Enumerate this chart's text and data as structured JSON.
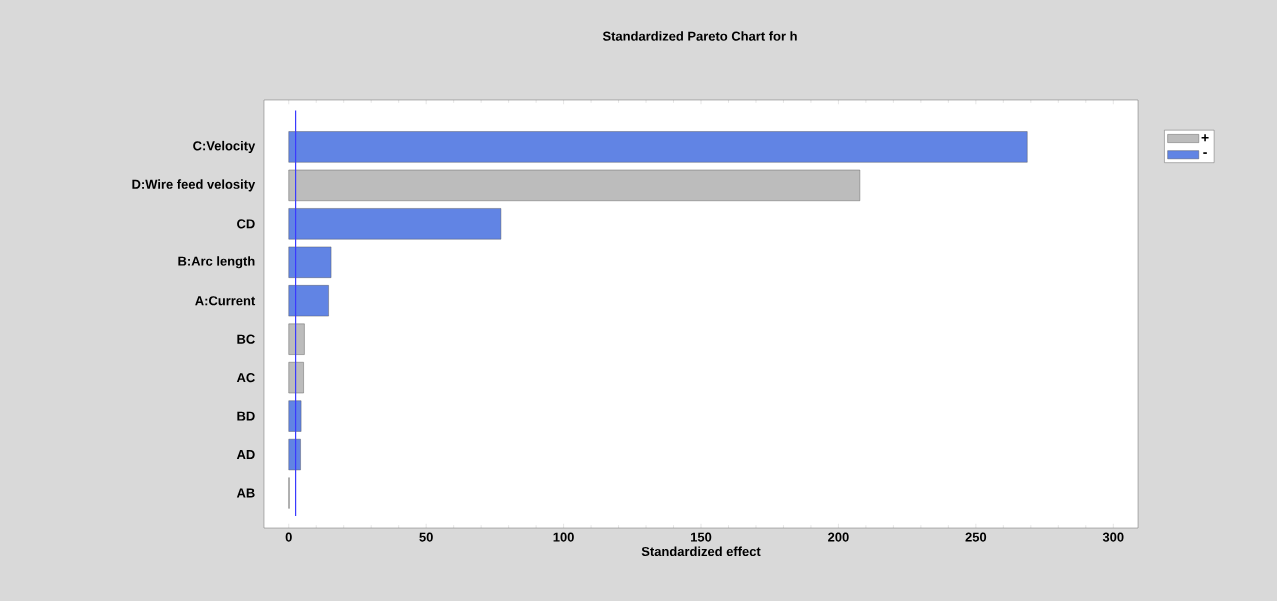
{
  "chart_data": {
    "type": "bar",
    "orientation": "horizontal",
    "title": "Standardized Pareto Chart for h",
    "xlabel": "Standardized effect",
    "categories": [
      "C:Velocity",
      "D:Wire feed velosity",
      "CD",
      "B:Arc length",
      "A:Current",
      "BC",
      "AC",
      "BD",
      "AD",
      "AB"
    ],
    "series": [
      {
        "name": "+",
        "color": "#bcbcbc",
        "values": [
          null,
          207.8,
          null,
          null,
          null,
          5.7,
          5.4,
          null,
          null,
          0.2
        ]
      },
      {
        "name": "-",
        "color": "#6184e4",
        "values": [
          268.7,
          null,
          77.2,
          15.4,
          14.5,
          null,
          null,
          4.5,
          4.3,
          null
        ]
      }
    ],
    "xlim": [
      -9,
      309
    ],
    "xticks": [
      0,
      50,
      100,
      150,
      200,
      250,
      300
    ],
    "ref_lines": [
      {
        "axis": "x",
        "value": 2.5,
        "color": "#3a3aff"
      }
    ],
    "legend": "top right",
    "grid": false
  }
}
